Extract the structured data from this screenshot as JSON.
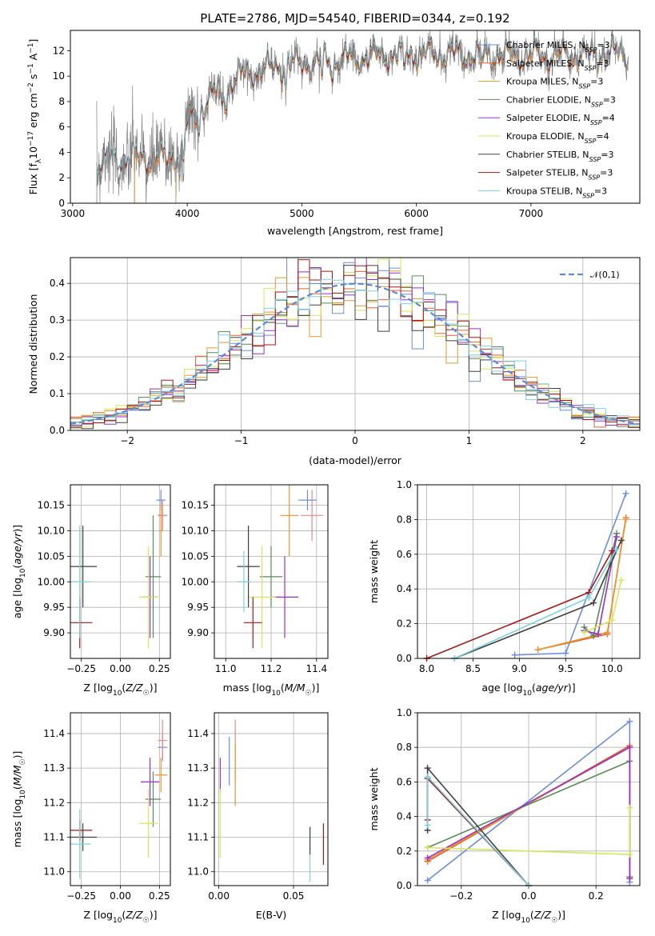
{
  "chart_data": [
    {
      "type": "line",
      "title": "PLATE=2786, MJD=54540, FIBERID=0344, z=0.192",
      "xlabel": "wavelength [Angstrom, rest frame]",
      "ylabel": "Flux [f_λ10^{-17} erg cm^{-2} s^{-1} A^{-1}]",
      "xlim": [
        2980,
        7950
      ],
      "ylim": [
        0,
        13.6
      ],
      "xticks": [
        3000,
        4000,
        5000,
        6000,
        7000
      ],
      "yticks": [
        0,
        2,
        4,
        6,
        8,
        10,
        12
      ],
      "grid": false,
      "legend_position": "top-right",
      "series": [
        {
          "name": "Chabrier MILES",
          "nssp": "3",
          "color": "#6b8fd6",
          "range": [
            3540,
            7850
          ]
        },
        {
          "name": "Salpeter MILES",
          "nssp": "3",
          "color": "#e2632b",
          "range": [
            3540,
            7400
          ]
        },
        {
          "name": "Kroupa MILES",
          "nssp": "3",
          "color": "#e8962e",
          "range": [
            3540,
            7850
          ]
        },
        {
          "name": "Chabrier ELODIE",
          "nssp": "3",
          "color": "#5a8a5a",
          "range": [
            3900,
            6800
          ]
        },
        {
          "name": "Salpeter ELODIE",
          "nssp": "4",
          "color": "#9b30c8",
          "range": [
            3900,
            6800
          ]
        },
        {
          "name": "Kroupa ELODIE",
          "nssp": "4",
          "color": "#d8e65a",
          "range": [
            3900,
            6800
          ]
        },
        {
          "name": "Chabrier STELIB",
          "nssp": "3",
          "color": "#404040",
          "range": [
            3210,
            7850
          ]
        },
        {
          "name": "Salpeter STELIB",
          "nssp": "3",
          "color": "#a01818",
          "range": [
            3210,
            7850
          ]
        },
        {
          "name": "Kroupa STELIB",
          "nssp": "3",
          "color": "#7fd0e0",
          "range": [
            3210,
            7850
          ]
        }
      ],
      "data_series": {
        "name": "data",
        "color": "#808080",
        "range": [
          3210,
          7850
        ]
      },
      "continuum_knots": {
        "x": [
          3210,
          3400,
          3600,
          3800,
          3950,
          4000,
          4200,
          4500,
          4800,
          5000,
          5500,
          6000,
          6500,
          7000,
          7500,
          7850
        ],
        "y": [
          3.2,
          3.4,
          3.6,
          3.4,
          4.2,
          6.2,
          8.4,
          10.2,
          10.8,
          11.0,
          11.5,
          11.8,
          11.7,
          11.6,
          11.7,
          11.8
        ]
      }
    },
    {
      "type": "bar",
      "xlabel": "(data-model)/error",
      "ylabel": "Normed distribution",
      "xlim": [
        -2.5,
        2.5
      ],
      "ylim": [
        0,
        0.47
      ],
      "xticks": [
        -2,
        -1,
        0,
        1,
        2
      ],
      "yticks": [
        0.0,
        0.1,
        0.2,
        0.3,
        0.4
      ],
      "grid": true,
      "bin_width": 0.1,
      "reference_curve": {
        "name": "𝒩(0,1)",
        "style": "dashed",
        "color": "#5b8bd6"
      },
      "legend_position": "top-right"
    },
    {
      "type": "scatter",
      "xlabel": "Z [log10(Z/Z☉)]",
      "ylabel": "age [log10(age/yr)]",
      "xlim": [
        -0.32,
        0.32
      ],
      "ylim": [
        9.85,
        10.19
      ],
      "xticks": [
        -0.25,
        0.0,
        0.25
      ],
      "yticks": [
        9.9,
        9.95,
        10.0,
        10.05,
        10.1,
        10.15
      ],
      "grid": true,
      "points": [
        {
          "x": 0.26,
          "y": 10.16,
          "xerr": 0.03,
          "yerr": 0.02,
          "color": "#6b8fd6"
        },
        {
          "x": 0.27,
          "y": 10.13,
          "xerr": 0.03,
          "yerr": 0.03,
          "color": "#e2632b"
        },
        {
          "x": 0.27,
          "y": 10.13,
          "xerr": 0.03,
          "yerr": 0.03,
          "color": "#e88a8a"
        },
        {
          "x": 0.26,
          "y": 10.1,
          "xerr": 0.01,
          "yerr": 0.05,
          "color": "#e8962e"
        },
        {
          "x": 0.21,
          "y": 10.01,
          "xerr": 0.05,
          "yerr": 0.12,
          "color": "#5a8a5a"
        },
        {
          "x": 0.19,
          "y": 9.97,
          "xerr": 0.05,
          "yerr": 0.08,
          "color": "#9b30c8"
        },
        {
          "x": 0.18,
          "y": 9.97,
          "xerr": 0.06,
          "yerr": 0.1,
          "color": "#d8e65a"
        },
        {
          "x": -0.24,
          "y": 10.03,
          "xerr": 0.09,
          "yerr": 0.08,
          "color": "#404040"
        },
        {
          "x": -0.26,
          "y": 9.92,
          "xerr": 0.08,
          "yerr": 0.05,
          "color": "#a01818"
        },
        {
          "x": -0.26,
          "y": 10.0,
          "xerr": 0.07,
          "yerr": 0.11,
          "color": "#7fd0e0"
        }
      ]
    },
    {
      "type": "scatter",
      "xlabel": "mass [log10(M/M☉)]",
      "ylabel": "",
      "xlim": [
        10.95,
        11.45
      ],
      "ylim": [
        9.85,
        10.19
      ],
      "xticks": [
        11.0,
        11.2,
        11.4
      ],
      "yticks": [
        9.9,
        9.95,
        10.0,
        10.05,
        10.1,
        10.15
      ],
      "grid": true,
      "points": [
        {
          "x": 11.36,
          "y": 10.16,
          "xerr": 0.04,
          "yerr": 0.02,
          "color": "#6b8fd6"
        },
        {
          "x": 11.28,
          "y": 10.13,
          "xerr": 0.04,
          "yerr": 0.08,
          "color": "#e8962e"
        },
        {
          "x": 11.38,
          "y": 10.13,
          "xerr": 0.05,
          "yerr": 0.05,
          "color": "#e88a8a"
        },
        {
          "x": 11.2,
          "y": 10.01,
          "xerr": 0.05,
          "yerr": 0.06,
          "color": "#5a8a5a"
        },
        {
          "x": 11.26,
          "y": 9.97,
          "xerr": 0.06,
          "yerr": 0.08,
          "color": "#9b30c8"
        },
        {
          "x": 11.16,
          "y": 9.97,
          "xerr": 0.06,
          "yerr": 0.1,
          "color": "#d8e65a"
        },
        {
          "x": 11.1,
          "y": 10.03,
          "xerr": 0.05,
          "yerr": 0.08,
          "color": "#404040"
        },
        {
          "x": 11.12,
          "y": 9.92,
          "xerr": 0.04,
          "yerr": 0.05,
          "color": "#a01818"
        },
        {
          "x": 11.08,
          "y": 10.0,
          "xerr": 0.03,
          "yerr": 0.06,
          "color": "#7fd0e0"
        }
      ]
    },
    {
      "type": "line",
      "xlabel": "age [log10(age/yr)]",
      "ylabel": "mass weight",
      "xlim": [
        7.9,
        10.3
      ],
      "ylim": [
        0.0,
        1.0
      ],
      "xticks": [
        8.0,
        8.5,
        9.0,
        9.5,
        10.0
      ],
      "yticks": [
        0.0,
        0.2,
        0.4,
        0.6,
        0.8,
        1.0
      ],
      "grid": true,
      "series": [
        {
          "name": "Chabrier MILES",
          "color": "#6b8fd6",
          "x": [
            8.95,
            9.5,
            10.15
          ],
          "y": [
            0.02,
            0.03,
            0.95
          ]
        },
        {
          "name": "Salpeter MILES",
          "color": "#e2632b",
          "x": [
            9.2,
            9.95,
            10.15
          ],
          "y": [
            0.05,
            0.14,
            0.81
          ]
        },
        {
          "name": "Kroupa MILES",
          "color": "#e8962e",
          "x": [
            9.2,
            9.95,
            10.15
          ],
          "y": [
            0.05,
            0.15,
            0.8
          ]
        },
        {
          "name": "Chabrier ELODIE",
          "color": "#5a8a5a",
          "x": [
            9.7,
            9.8,
            10.05
          ],
          "y": [
            0.18,
            0.13,
            0.72
          ]
        },
        {
          "name": "Salpeter ELODIE",
          "color": "#9b30c8",
          "x": [
            9.7,
            9.85,
            10.05
          ],
          "y": [
            0.16,
            0.14,
            0.7
          ]
        },
        {
          "name": "Kroupa ELODIE",
          "color": "#d8e65a",
          "x": [
            9.7,
            10.0,
            10.1
          ],
          "y": [
            0.15,
            0.22,
            0.45
          ]
        },
        {
          "name": "Chabrier STELIB",
          "color": "#404040",
          "x": [
            8.3,
            9.8,
            10.1
          ],
          "y": [
            0.0,
            0.32,
            0.68
          ]
        },
        {
          "name": "Salpeter STELIB",
          "color": "#a01818",
          "x": [
            8.0,
            9.75,
            10.0
          ],
          "y": [
            0.0,
            0.38,
            0.62
          ]
        },
        {
          "name": "Kroupa STELIB",
          "color": "#7fd0e0",
          "x": [
            8.3,
            9.75,
            10.05
          ],
          "y": [
            0.0,
            0.35,
            0.63
          ]
        }
      ]
    },
    {
      "type": "scatter",
      "xlabel": "Z [log10(Z/Z☉)]",
      "ylabel": "mass [log10(M/M☉)]",
      "xlim": [
        -0.32,
        0.32
      ],
      "ylim": [
        10.96,
        11.46
      ],
      "xticks": [
        -0.25,
        0.0,
        0.25
      ],
      "yticks": [
        11.0,
        11.1,
        11.2,
        11.3,
        11.4
      ],
      "grid": true,
      "points": [
        {
          "x": 0.27,
          "y": 11.36,
          "xerr": 0.03,
          "yerr": 0.04,
          "color": "#6b8fd6"
        },
        {
          "x": 0.27,
          "y": 11.38,
          "xerr": 0.03,
          "yerr": 0.06,
          "color": "#e88a8a"
        },
        {
          "x": 0.26,
          "y": 11.28,
          "xerr": 0.04,
          "yerr": 0.05,
          "color": "#e8962e"
        },
        {
          "x": 0.21,
          "y": 11.21,
          "xerr": 0.05,
          "yerr": 0.08,
          "color": "#5a8a5a"
        },
        {
          "x": 0.19,
          "y": 11.26,
          "xerr": 0.06,
          "yerr": 0.07,
          "color": "#9b30c8"
        },
        {
          "x": 0.18,
          "y": 11.14,
          "xerr": 0.06,
          "yerr": 0.1,
          "color": "#d8e65a"
        },
        {
          "x": -0.24,
          "y": 11.1,
          "xerr": 0.09,
          "yerr": 0.04,
          "color": "#404040"
        },
        {
          "x": -0.26,
          "y": 11.12,
          "xerr": 0.08,
          "yerr": 0.03,
          "color": "#a01818"
        },
        {
          "x": -0.26,
          "y": 11.08,
          "xerr": 0.07,
          "yerr": 0.1,
          "color": "#7fd0e0"
        }
      ]
    },
    {
      "type": "scatter",
      "xlabel": "E(B-V)",
      "ylabel": "",
      "xlim": [
        -0.003,
        0.073
      ],
      "ylim": [
        10.96,
        11.46
      ],
      "xticks": [
        0.0,
        0.05
      ],
      "yticks": [
        11.0,
        11.1,
        11.2,
        11.3,
        11.4
      ],
      "grid": true,
      "points": [
        {
          "x": 0.001,
          "y": 11.28,
          "xerr": 0.0,
          "yerr": 0.05,
          "color": "#9b30c8"
        },
        {
          "x": 0.001,
          "y": 11.14,
          "xerr": 0.0,
          "yerr": 0.1,
          "color": "#d8e65a"
        },
        {
          "x": 0.007,
          "y": 11.32,
          "xerr": 0.0,
          "yerr": 0.07,
          "color": "#6b8fd6"
        },
        {
          "x": 0.011,
          "y": 11.35,
          "xerr": 0.0,
          "yerr": 0.09,
          "color": "#e88a8a"
        },
        {
          "x": 0.011,
          "y": 11.28,
          "xerr": 0.0,
          "yerr": 0.09,
          "color": "#e8962e"
        },
        {
          "x": 0.061,
          "y": 11.05,
          "xerr": 0.0,
          "yerr": 0.08,
          "color": "#7fd0e0"
        },
        {
          "x": 0.061,
          "y": 11.09,
          "xerr": 0.0,
          "yerr": 0.04,
          "color": "#404040"
        },
        {
          "x": 0.07,
          "y": 11.08,
          "xerr": 0.0,
          "yerr": 0.06,
          "color": "#a01818"
        }
      ]
    },
    {
      "type": "line",
      "xlabel": "Z [log10(Z/Z☉)]",
      "ylabel": "mass weight",
      "xlim": [
        -0.33,
        0.33
      ],
      "ylim": [
        0.0,
        1.0
      ],
      "xticks": [
        -0.2,
        0.0,
        0.2
      ],
      "yticks": [
        0.0,
        0.2,
        0.4,
        0.6,
        0.8,
        1.0
      ],
      "grid": true,
      "series": [
        {
          "name": "Chabrier MILES",
          "color": "#6b8fd6",
          "x": [
            -0.3,
            0.3,
            0.3
          ],
          "y": [
            0.03,
            0.95,
            0.02
          ]
        },
        {
          "name": "Salpeter MILES",
          "color": "#e2632b",
          "x": [
            -0.3,
            0.3,
            0.3
          ],
          "y": [
            0.14,
            0.81,
            0.05
          ]
        },
        {
          "name": "Kroupa MILES",
          "color": "#e8962e",
          "x": [
            -0.3,
            0.3,
            0.3
          ],
          "y": [
            0.15,
            0.8,
            0.05
          ]
        },
        {
          "name": "Chabrier ELODIE",
          "color": "#5a8a5a",
          "x": [
            -0.3,
            0.3,
            0.3
          ],
          "y": [
            0.22,
            0.72,
            0.05
          ]
        },
        {
          "name": "Salpeter ELODIE",
          "color": "#9b30c8",
          "x": [
            -0.3,
            0.3,
            0.3
          ],
          "y": [
            0.16,
            0.8,
            0.04
          ]
        },
        {
          "name": "Kroupa ELODIE",
          "color": "#d8e65a",
          "x": [
            -0.3,
            0.3,
            0.3
          ],
          "y": [
            0.22,
            0.18,
            0.45
          ]
        },
        {
          "name": "Chabrier STELIB",
          "color": "#404040",
          "x": [
            -0.3,
            -0.3,
            0.0
          ],
          "y": [
            0.32,
            0.68,
            0.0
          ]
        },
        {
          "name": "Salpeter STELIB",
          "color": "#a01818",
          "x": [
            -0.3,
            -0.3,
            0.0
          ],
          "y": [
            0.38,
            0.62,
            0.0
          ]
        },
        {
          "name": "Kroupa STELIB",
          "color": "#7fd0e0",
          "x": [
            -0.3,
            -0.3,
            0.0
          ],
          "y": [
            0.35,
            0.63,
            0.0
          ]
        }
      ]
    }
  ]
}
